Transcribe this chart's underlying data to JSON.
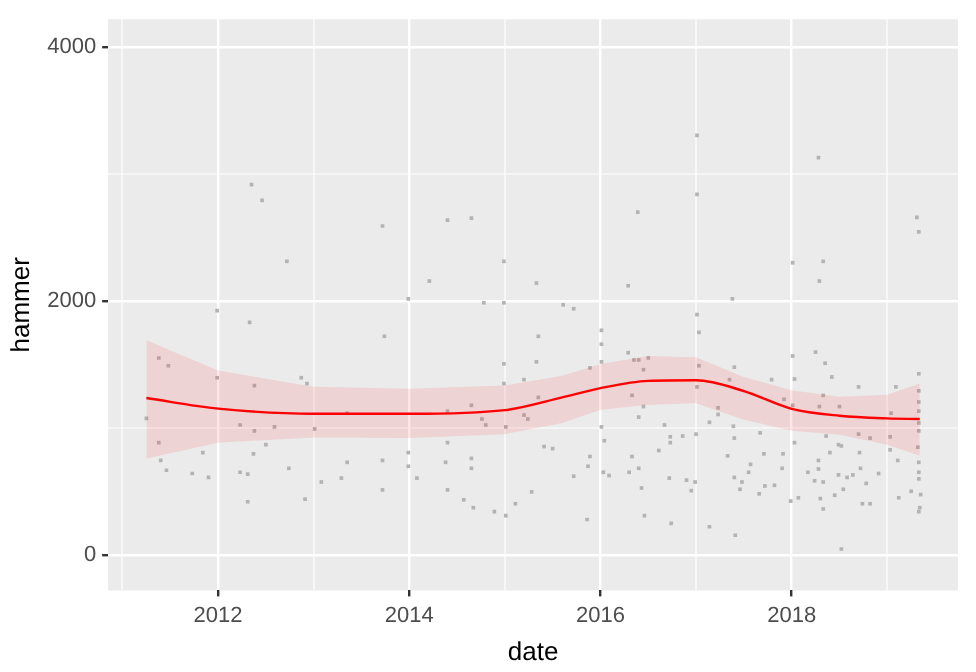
{
  "chart_data": {
    "type": "scatter",
    "xlabel": "date",
    "ylabel": "hammer",
    "xlim": [
      2010.85,
      2019.74
    ],
    "ylim": [
      -279,
      4217
    ],
    "xticks": [
      {
        "value": 2011,
        "label": null
      },
      2012,
      {
        "value": 2013,
        "label": null
      },
      2014,
      {
        "value": 2015,
        "label": null
      },
      2016,
      {
        "value": 2017,
        "label": null
      },
      2018,
      {
        "value": 2019,
        "label": null
      }
    ],
    "yticks": [
      0,
      {
        "value": 1000,
        "label": null
      },
      2000,
      {
        "value": 3000,
        "label": null
      },
      4000
    ],
    "grid": true,
    "legend": false,
    "series": [
      {
        "marker": "square",
        "color": "#b3b3b3",
        "x": [
          2011.25,
          2011.38,
          2011.48,
          2011.38,
          2011.4,
          2011.46,
          2011.73,
          2011.84,
          2011.9,
          2011.99,
          2011.99,
          2012.35,
          2012.46,
          2012.33,
          2012.38,
          2012.23,
          2012.38,
          2012.37,
          2012.23,
          2012.31,
          2012.31,
          2012.5,
          2012.59,
          2012.72,
          2012.74,
          2012.87,
          2012.93,
          2013.01,
          2012.91,
          2013.08,
          2013.35,
          2013.35,
          2013.29,
          2013.72,
          2013.74,
          2013.72,
          2013.72,
          2013.99,
          2013.99,
          2013.99,
          2014.08,
          2014.21,
          2014.4,
          2014.65,
          2014.4,
          2014.4,
          2014.38,
          2014.4,
          2014.65,
          2014.65,
          2014.65,
          2014.57,
          2014.67,
          2014.78,
          2014.76,
          2014.8,
          2014.99,
          2014.99,
          2014.99,
          2014.99,
          2015.01,
          2014.89,
          2015.01,
          2015.11,
          2015.28,
          2015.2,
          2015.2,
          2015.24,
          2015.33,
          2015.35,
          2015.33,
          2015.35,
          2015.41,
          2015.5,
          2015.61,
          2015.72,
          2015.89,
          2016.01,
          2016.01,
          2016.01,
          2016.01,
          2016.04,
          2015.89,
          2015.87,
          2015.86,
          2016.03,
          2016.09,
          2015.72,
          2016.29,
          2016.39,
          2016.29,
          2016.35,
          2016.4,
          2016.5,
          2016.45,
          2016.33,
          2016.4,
          2016.45,
          2016.67,
          2016.73,
          2016.73,
          2016.86,
          2016.33,
          2016.3,
          2016.4,
          2016.61,
          2016.72,
          2016.43,
          2016.46,
          2016.74,
          2016.9,
          2016.95,
          2017.01,
          2017.01,
          2017.01,
          2017.03,
          2017.03,
          2017.01,
          2017.0,
          2016.99,
          2017.14,
          2017.23,
          2017.23,
          2017.14,
          2017.38,
          2017.35,
          2017.4,
          2017.39,
          2017.4,
          2017.33,
          2017.4,
          2017.48,
          2017.41,
          2017.57,
          2017.55,
          2017.46,
          2017.66,
          2017.67,
          2017.71,
          2017.72,
          2017.82,
          2017.79,
          2017.92,
          2017.91,
          2017.9,
          2018.01,
          2018.01,
          2018.03,
          2018.01,
          2018.03,
          2017.99,
          2018.07,
          2018.28,
          2018.33,
          2018.29,
          2018.25,
          2018.35,
          2018.33,
          2018.29,
          2018.36,
          2018.28,
          2018.28,
          2018.17,
          2018.24,
          2018.33,
          2018.3,
          2018.33,
          2018.42,
          2018.5,
          2018.4,
          2018.49,
          2018.52,
          2018.49,
          2018.45,
          2018.54,
          2018.52,
          2018.58,
          2018.64,
          2018.7,
          2018.7,
          2018.71,
          2018.82,
          2018.72,
          2018.78,
          2018.74,
          2018.82,
          2018.91,
          2019.04,
          2019.03,
          2019.03,
          2019.09,
          2019.11,
          2019.12,
          2019.25,
          2019.31,
          2019.33,
          2019.33,
          2019.33,
          2019.33,
          2019.33,
          2019.33,
          2019.33,
          2019.32,
          2019.33,
          2019.33,
          2019.33,
          2019.35,
          2019.34,
          2019.33
        ],
        "values": [
          1075,
          1550,
          1489,
          884,
          744,
          667,
          641,
          806,
          610,
          1923,
          1395,
          2915,
          2791,
          1830,
          1333,
          1023,
          977,
          796,
          651,
          636,
          419,
          868,
          1008,
          2311,
          682,
          1395,
          1349,
          992,
          439,
          574,
          1116,
          729,
          605,
          2589,
          1721,
          744,
          512,
          2016,
          806,
          698,
          605,
          2156,
          2636,
          2651,
          1132,
          884,
          729,
          512,
          1178,
          760,
          682,
          434,
          372,
          1985,
          1070,
          1023,
          2311,
          1985,
          1504,
          1349,
          1008,
          341,
          310,
          403,
          496,
          1380,
          1101,
          1070,
          2140,
          1721,
          1520,
          1240,
          853,
          837,
          1969,
          1938,
          1473,
          1768,
          1659,
          1520,
          1008,
          899,
          775,
          698,
          279,
          651,
          625,
          620,
          2119,
          2698,
          1592,
          1535,
          1535,
          1551,
          1458,
          1256,
          1085,
          1168,
          1023,
          930,
          884,
          936,
          775,
          651,
          682,
          822,
          605,
          527,
          310,
          248,
          589,
          506,
          3303,
          2838,
          1892,
          1752,
          1489,
          1323,
          951,
          574,
          1044,
          1158,
          1106,
          222,
          2016,
          1380,
          1478,
          1013,
          920,
          780,
          610,
          574,
          155,
          713,
          651,
          517,
          481,
          961,
          796,
          543,
          548,
          1380,
          1225,
          796,
          682,
          2300,
          1566,
          1385,
          1178,
          884,
          424,
          450,
          3127,
          2311,
          2156,
          1597,
          1509,
          1256,
          1168,
          936,
          744,
          677,
          651,
          584,
          574,
          444,
          362,
          1401,
          1168,
          806,
          868,
          858,
          630,
          470,
          517,
          47,
          610,
          630,
          1323,
          951,
          806,
          920,
          682,
          563,
          403,
          403,
          641,
          1116,
          930,
          827,
          1323,
          744,
          450,
          501,
          2657,
          2543,
          1426,
          1292,
          1204,
          1132,
          1039,
          977,
          848,
          729,
          651,
          599,
          475,
          372,
          341
        ]
      },
      {
        "type": "line",
        "color": "#ff0000",
        "marker": "none",
        "x": [
          2011.25,
          2012,
          2013,
          2014,
          2015,
          2015.6,
          2016,
          2016.5,
          2017,
          2017.5,
          2018,
          2018.5,
          2019,
          2019.34
        ],
        "values": [
          1235,
          1152,
          1111,
          1111,
          1140,
          1240,
          1313,
          1370,
          1375,
          1290,
          1150,
          1096,
          1075,
          1070
        ],
        "lower": [
          760,
          884,
          925,
          920,
          951,
          1039,
          1142,
          1183,
          1194,
          1065,
          977,
          946,
          868,
          780
        ],
        "upper": [
          1690,
          1452,
          1323,
          1308,
          1333,
          1411,
          1504,
          1566,
          1556,
          1401,
          1297,
          1245,
          1261,
          1349
        ]
      }
    ]
  }
}
